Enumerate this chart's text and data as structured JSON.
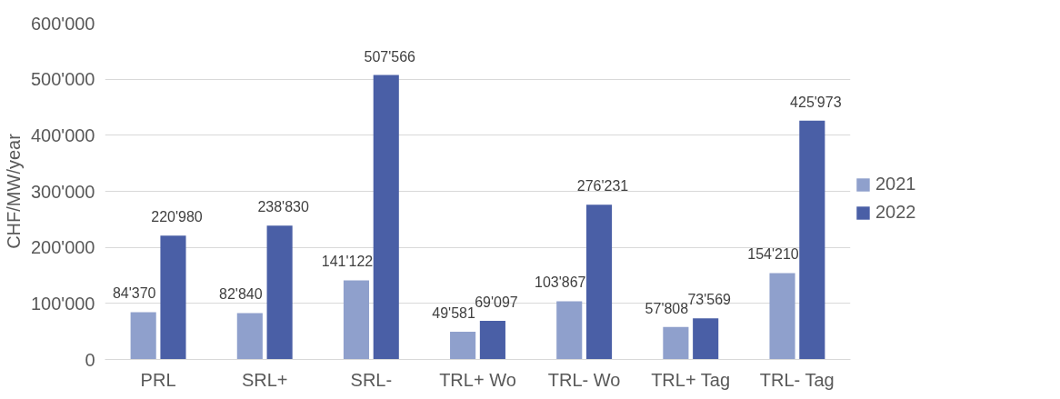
{
  "chart_data": {
    "type": "bar",
    "ylabel": "CHF/MW/year",
    "categories": [
      "PRL",
      "SRL+",
      "SRL-",
      "TRL+ Wo",
      "TRL- Wo",
      "TRL+ Tag",
      "TRL- Tag"
    ],
    "series": [
      {
        "name": "2021",
        "color": "#8fa0cc",
        "values": [
          84370,
          82840,
          141122,
          49581,
          103867,
          57808,
          154210
        ],
        "value_labels": [
          "84'370",
          "82'840",
          "141'122",
          "49'581",
          "103'867",
          "57'808",
          "154'210"
        ]
      },
      {
        "name": "2022",
        "color": "#4a5fa6",
        "values": [
          220980,
          238830,
          507566,
          69097,
          276231,
          73569,
          425973
        ],
        "value_labels": [
          "220'980",
          "238'830",
          "507'566",
          "69'097",
          "276'231",
          "73'569",
          "425'973"
        ]
      }
    ],
    "ylim": [
      0,
      600000
    ],
    "yticks": [
      {
        "value": 0,
        "label": "0"
      },
      {
        "value": 100000,
        "label": "100'000"
      },
      {
        "value": 200000,
        "label": "200'000"
      },
      {
        "value": 300000,
        "label": "300'000"
      },
      {
        "value": 400000,
        "label": "400'000"
      },
      {
        "value": 500000,
        "label": "500'000"
      },
      {
        "value": 600000,
        "label": "600'000"
      }
    ],
    "grid": "y",
    "legend": "right"
  }
}
